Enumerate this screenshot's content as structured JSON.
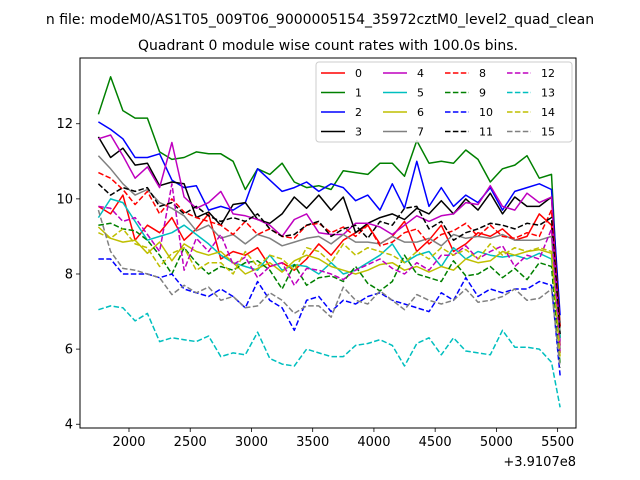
{
  "suptitle": "n file: modeM0/AS1T05_009T06_9000005154_35972cztM0_level2_quad_clean",
  "chart_data": {
    "type": "line",
    "title": "Quadrant 0 module wise count rates with 100.0s bins.",
    "xlabel": "",
    "ylabel": "",
    "x_offset_label": "+3.9107e8",
    "xlim": [
      1600,
      5650
    ],
    "ylim": [
      3.9,
      13.75
    ],
    "xticks": [
      2000,
      2500,
      3000,
      3500,
      4000,
      4500,
      5000,
      5500
    ],
    "xtick_labels": [
      "2000",
      "2500",
      "3000",
      "3500",
      "4000",
      "4500",
      "5000",
      "5500"
    ],
    "yticks": [
      4,
      6,
      8,
      10,
      12
    ],
    "ytick_labels": [
      "4",
      "6",
      "8",
      "10",
      "12"
    ],
    "grid": false,
    "legend_position": "top-right",
    "legend_columns": 4,
    "x": [
      1750,
      1850,
      1950,
      2050,
      2150,
      2250,
      2350,
      2450,
      2550,
      2650,
      2750,
      2850,
      2950,
      3050,
      3150,
      3250,
      3350,
      3450,
      3550,
      3650,
      3750,
      3850,
      3950,
      4050,
      4150,
      4250,
      4350,
      4450,
      4550,
      4650,
      4750,
      4850,
      4950,
      5050,
      5150,
      5250,
      5350,
      5450,
      5520
    ],
    "series": [
      {
        "name": "0",
        "color": "#ff0000",
        "style": "solid",
        "values": [
          9.8,
          9.6,
          10.1,
          8.9,
          9.3,
          9.1,
          9.5,
          8.9,
          9.2,
          9.6,
          8.4,
          8.6,
          8.5,
          8.7,
          8.2,
          8.3,
          8.1,
          8.4,
          8.8,
          8.5,
          8.9,
          9.1,
          9.3,
          8.8,
          9.0,
          9.4,
          8.6,
          8.9,
          9.3,
          8.6,
          8.8,
          9.1,
          9.0,
          9.2,
          8.9,
          9.0,
          9.6,
          9.3,
          6.1
        ]
      },
      {
        "name": "1",
        "color": "#008000",
        "style": "solid",
        "values": [
          12.25,
          13.25,
          12.35,
          12.15,
          12.15,
          11.25,
          11.05,
          11.1,
          11.25,
          11.2,
          11.2,
          11.0,
          10.25,
          10.8,
          10.65,
          10.95,
          10.45,
          10.3,
          10.35,
          10.25,
          10.75,
          10.7,
          10.65,
          10.95,
          10.95,
          10.6,
          11.55,
          10.95,
          11.0,
          10.95,
          11.3,
          11.05,
          10.45,
          10.8,
          10.9,
          11.15,
          10.55,
          10.65,
          6.3
        ]
      },
      {
        "name": "2",
        "color": "#0000ff",
        "style": "solid",
        "values": [
          12.05,
          11.85,
          11.6,
          11.1,
          11.1,
          11.2,
          10.5,
          10.3,
          10.35,
          9.7,
          9.8,
          9.7,
          9.9,
          10.8,
          10.5,
          10.2,
          10.3,
          10.45,
          10.2,
          10.4,
          10.3,
          9.95,
          10.1,
          9.7,
          10.4,
          9.75,
          11.0,
          9.8,
          10.3,
          9.8,
          10.1,
          9.9,
          10.3,
          9.7,
          10.2,
          10.3,
          10.4,
          10.25,
          6.9
        ]
      },
      {
        "name": "3",
        "color": "#000000",
        "style": "solid",
        "values": [
          11.65,
          11.1,
          11.35,
          10.9,
          10.95,
          10.35,
          10.45,
          10.4,
          9.5,
          9.65,
          9.3,
          9.85,
          9.9,
          9.45,
          9.35,
          9.6,
          10.05,
          9.75,
          10.1,
          9.7,
          10.05,
          9.1,
          9.35,
          9.5,
          9.6,
          9.45,
          9.75,
          9.6,
          9.95,
          9.6,
          10.0,
          9.7,
          10.15,
          9.6,
          10.05,
          9.8,
          9.8,
          10.05,
          6.6
        ]
      },
      {
        "name": "4",
        "color": "#bf00bf",
        "style": "solid",
        "values": [
          11.6,
          11.7,
          11.15,
          10.55,
          10.85,
          10.3,
          11.5,
          10.05,
          9.75,
          9.9,
          10.2,
          9.6,
          9.55,
          9.45,
          9.3,
          9.0,
          9.45,
          9.6,
          9.1,
          9.05,
          9.05,
          9.35,
          9.35,
          9.25,
          9.05,
          9.3,
          9.55,
          9.4,
          9.55,
          9.6,
          9.9,
          9.85,
          10.35,
          9.8,
          9.7,
          10.15,
          9.9,
          10.05,
          6.2
        ]
      },
      {
        "name": "5",
        "color": "#00bfbf",
        "style": "solid",
        "values": [
          9.5,
          10.0,
          9.9,
          9.4,
          8.9,
          9.0,
          9.1,
          9.3,
          9.05,
          8.8,
          8.5,
          8.3,
          8.2,
          8.1,
          8.5,
          8.1,
          8.25,
          8.2,
          8.0,
          8.3,
          8.0,
          8.1,
          8.3,
          8.5,
          8.8,
          8.3,
          8.5,
          8.6,
          8.2,
          8.7,
          8.4,
          8.6,
          8.5,
          8.45,
          8.5,
          8.4,
          8.55,
          8.4,
          6.3
        ]
      },
      {
        "name": "6",
        "color": "#bfbf00",
        "style": "solid",
        "values": [
          9.25,
          8.95,
          8.85,
          8.9,
          8.55,
          8.85,
          8.35,
          8.8,
          8.6,
          8.5,
          8.6,
          8.3,
          8.0,
          8.15,
          8.3,
          8.05,
          8.35,
          8.5,
          8.4,
          8.2,
          8.1,
          8.0,
          8.1,
          8.25,
          8.3,
          8.1,
          8.2,
          8.05,
          8.2,
          8.1,
          8.4,
          8.3,
          8.35,
          8.6,
          8.5,
          8.6,
          8.65,
          8.55,
          5.9
        ]
      },
      {
        "name": "7",
        "color": "#808080",
        "style": "solid",
        "values": [
          11.15,
          10.8,
          10.4,
          10.1,
          10.25,
          9.9,
          9.75,
          9.55,
          9.15,
          9.3,
          8.95,
          9.05,
          8.8,
          9.05,
          8.95,
          8.75,
          8.85,
          8.95,
          9.0,
          8.8,
          9.05,
          8.85,
          8.85,
          8.8,
          9.0,
          8.85,
          8.85,
          8.95,
          8.75,
          9.05,
          8.95,
          9.0,
          8.95,
          9.05,
          8.9,
          8.9,
          8.9,
          9.0,
          6.0
        ]
      },
      {
        "name": "8",
        "color": "#ff0000",
        "style": "dashed",
        "values": [
          10.7,
          10.55,
          10.25,
          9.85,
          10.2,
          9.6,
          10.0,
          9.65,
          9.5,
          9.4,
          9.3,
          9.05,
          9.4,
          9.05,
          9.2,
          9.0,
          8.95,
          9.3,
          9.35,
          9.1,
          9.25,
          9.0,
          9.3,
          8.75,
          8.85,
          9.1,
          9.2,
          8.8,
          9.05,
          9.15,
          9.35,
          9.0,
          9.3,
          9.0,
          8.95,
          9.1,
          9.0,
          9.7,
          6.6
        ]
      },
      {
        "name": "9",
        "color": "#008000",
        "style": "dashed",
        "values": [
          9.3,
          9.35,
          9.2,
          9.15,
          8.9,
          8.5,
          8.0,
          8.7,
          8.3,
          8.0,
          8.2,
          8.1,
          8.3,
          8.35,
          8.1,
          7.6,
          8.25,
          7.7,
          7.9,
          7.95,
          7.8,
          8.2,
          7.75,
          7.55,
          7.8,
          8.5,
          8.0,
          7.9,
          7.8,
          8.35,
          7.95,
          8.0,
          8.2,
          7.9,
          8.15,
          7.85,
          8.3,
          8.2,
          5.6
        ]
      },
      {
        "name": "10",
        "color": "#0000ff",
        "style": "dashed",
        "values": [
          8.4,
          8.4,
          8.0,
          8.0,
          8.0,
          7.9,
          8.0,
          7.6,
          7.5,
          7.4,
          7.6,
          7.4,
          7.1,
          7.8,
          7.3,
          7.1,
          6.5,
          7.3,
          7.4,
          7.0,
          7.3,
          7.2,
          7.4,
          7.5,
          7.3,
          7.2,
          7.1,
          7.0,
          7.5,
          7.3,
          7.9,
          7.4,
          7.6,
          7.5,
          7.6,
          7.6,
          7.8,
          7.7,
          5.3
        ]
      },
      {
        "name": "11",
        "color": "#000000",
        "style": "dashed",
        "values": [
          10.4,
          10.1,
          10.3,
          10.2,
          10.3,
          9.8,
          9.9,
          9.6,
          9.8,
          9.55,
          9.4,
          9.5,
          9.4,
          9.6,
          9.2,
          9.0,
          9.05,
          9.3,
          9.4,
          9.0,
          9.2,
          9.3,
          8.95,
          9.4,
          9.3,
          9.75,
          9.8,
          9.2,
          9.4,
          8.9,
          9.1,
          9.2,
          9.35,
          9.3,
          9.2,
          9.35,
          9.3,
          9.5,
          6.4
        ]
      },
      {
        "name": "12",
        "color": "#bf00bf",
        "style": "dashed",
        "values": [
          9.8,
          9.75,
          9.4,
          9.5,
          9.05,
          8.6,
          10.4,
          8.1,
          8.95,
          8.6,
          9.05,
          8.25,
          8.45,
          7.9,
          8.2,
          8.3,
          7.7,
          8.15,
          8.1,
          8.0,
          7.85,
          8.1,
          8.25,
          8.4,
          8.15,
          8.0,
          8.3,
          8.1,
          8.5,
          8.5,
          8.75,
          8.4,
          8.6,
          8.75,
          8.2,
          8.5,
          8.4,
          9.2,
          5.9
        ]
      },
      {
        "name": "13",
        "color": "#00bfbf",
        "style": "dashed",
        "values": [
          7.05,
          7.15,
          7.1,
          6.75,
          6.95,
          6.2,
          6.3,
          6.25,
          6.2,
          6.35,
          5.8,
          5.9,
          5.85,
          6.45,
          5.75,
          5.6,
          5.55,
          6.0,
          5.9,
          5.8,
          5.8,
          6.1,
          6.15,
          6.25,
          6.1,
          5.55,
          6.15,
          6.3,
          5.85,
          6.3,
          5.95,
          5.9,
          5.85,
          6.5,
          6.05,
          6.05,
          6.0,
          5.65,
          4.45
        ]
      },
      {
        "name": "14",
        "color": "#bfbf00",
        "style": "dashed",
        "values": [
          9.1,
          8.95,
          9.2,
          8.8,
          8.7,
          8.2,
          8.55,
          8.7,
          8.1,
          8.3,
          8.3,
          8.0,
          8.6,
          8.2,
          8.5,
          8.4,
          8.1,
          8.7,
          8.6,
          8.3,
          8.8,
          8.5,
          8.7,
          8.6,
          8.5,
          8.3,
          8.6,
          8.4,
          8.7,
          8.5,
          8.65,
          8.4,
          8.8,
          8.5,
          8.7,
          8.6,
          8.7,
          8.6,
          5.8
        ]
      },
      {
        "name": "15",
        "color": "#808080",
        "style": "dashed",
        "values": [
          9.7,
          8.6,
          8.15,
          8.1,
          8.0,
          7.9,
          7.45,
          7.7,
          7.5,
          7.65,
          7.3,
          7.4,
          7.1,
          7.15,
          7.5,
          7.3,
          6.95,
          7.15,
          7.15,
          6.85,
          7.65,
          7.3,
          7.2,
          7.55,
          7.3,
          7.05,
          7.45,
          7.3,
          7.2,
          7.3,
          7.6,
          7.25,
          7.3,
          7.4,
          7.6,
          7.3,
          7.35,
          7.6,
          5.5
        ]
      }
    ]
  }
}
